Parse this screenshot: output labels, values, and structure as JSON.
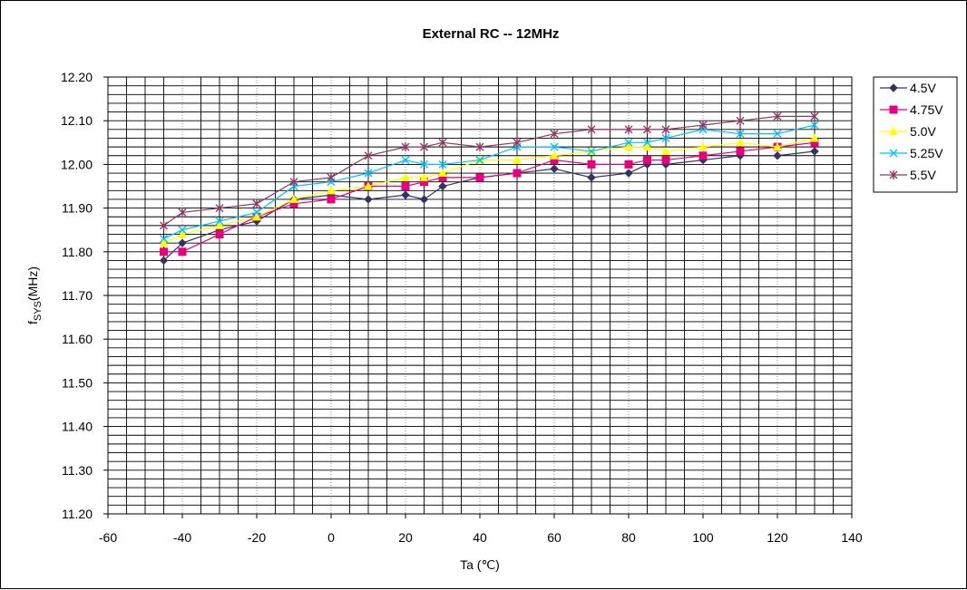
{
  "chart_data": {
    "type": "line",
    "title": "External RC -- 12MHz",
    "xlabel": "Ta (℃)",
    "ylabel_main": "f",
    "ylabel_sub": "SYS",
    "ylabel_unit": "(MHz)",
    "xlim": [
      -60,
      140
    ],
    "ylim": [
      11.2,
      12.2
    ],
    "xticks": [
      "-60",
      "-40",
      "-20",
      "0",
      "20",
      "40",
      "60",
      "80",
      "100",
      "120",
      "140"
    ],
    "yticks": [
      "12.20",
      "12.10",
      "12.00",
      "11.90",
      "11.80",
      "11.70",
      "11.60",
      "11.50",
      "11.40",
      "11.30",
      "11.20"
    ],
    "grid": true,
    "legend_position": "right",
    "x": [
      -45,
      -40,
      -30,
      -20,
      -10,
      0,
      10,
      20,
      25,
      30,
      40,
      50,
      60,
      70,
      80,
      85,
      90,
      100,
      110,
      120,
      130
    ],
    "series": [
      {
        "name": "4.5V",
        "color": "#333366",
        "marker": "diamond",
        "values": [
          11.78,
          11.82,
          11.85,
          11.87,
          11.92,
          11.93,
          11.92,
          11.93,
          11.92,
          11.95,
          11.97,
          11.98,
          11.99,
          11.97,
          11.98,
          12.0,
          12.0,
          12.01,
          12.02,
          12.02,
          12.03
        ]
      },
      {
        "name": "4.75V",
        "color": "#E6007E",
        "marker": "square",
        "values": [
          11.8,
          11.8,
          11.84,
          11.88,
          11.91,
          11.92,
          11.95,
          11.95,
          11.96,
          11.97,
          11.97,
          11.98,
          12.01,
          12.0,
          12.0,
          12.01,
          12.01,
          12.02,
          12.03,
          12.04,
          12.05
        ]
      },
      {
        "name": "5.0V",
        "color": "#FFFF00",
        "marker": "triangle",
        "values": [
          11.82,
          11.84,
          11.86,
          11.88,
          11.92,
          11.94,
          11.95,
          11.97,
          11.97,
          11.98,
          12.01,
          12.01,
          12.02,
          12.03,
          12.04,
          12.04,
          12.03,
          12.04,
          12.05,
          12.04,
          12.06
        ]
      },
      {
        "name": "5.25V",
        "color": "#00BFFF",
        "marker": "x",
        "values": [
          11.83,
          11.85,
          11.87,
          11.89,
          11.95,
          11.96,
          11.98,
          12.01,
          12.0,
          12.0,
          12.01,
          12.04,
          12.04,
          12.03,
          12.05,
          12.05,
          12.06,
          12.08,
          12.07,
          12.07,
          12.09
        ]
      },
      {
        "name": "5.5V",
        "color": "#8B3A62",
        "marker": "star",
        "values": [
          11.86,
          11.89,
          11.9,
          11.91,
          11.96,
          11.97,
          12.02,
          12.04,
          12.04,
          12.05,
          12.04,
          12.05,
          12.07,
          12.08,
          12.08,
          12.08,
          12.08,
          12.09,
          12.1,
          12.11,
          12.11
        ]
      }
    ]
  }
}
